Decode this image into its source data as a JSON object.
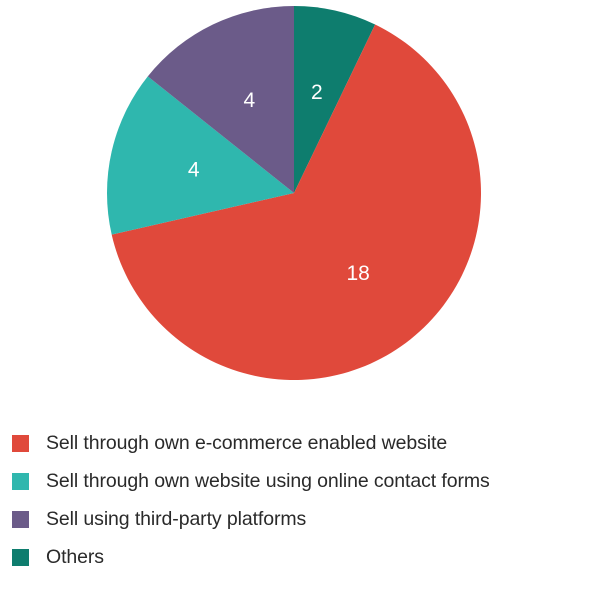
{
  "chart_data": {
    "type": "pie",
    "slices": [
      {
        "label": "Others",
        "value": 2,
        "value_label": "2",
        "color": "#0e7d6e"
      },
      {
        "label": "Sell through own e-commerce enabled website",
        "value": 18,
        "value_label": "18",
        "color": "#e0493b"
      },
      {
        "label": "Sell through own website using online contact forms",
        "value": 4,
        "value_label": "4",
        "color": "#2fb7ae"
      },
      {
        "label": "Sell using third-party platforms",
        "value": 4,
        "value_label": "4",
        "color": "#6b5b89"
      }
    ],
    "start": "12 o'clock",
    "direction": "clockwise",
    "legend_position": "bottom-left"
  },
  "legend": [
    {
      "label": "Sell through own e-commerce enabled website",
      "color": "#e0493b"
    },
    {
      "label": "Sell through own website using online contact forms",
      "color": "#2fb7ae"
    },
    {
      "label": "Sell using third-party platforms",
      "color": "#6b5b89"
    },
    {
      "label": "Others",
      "color": "#0e7d6e"
    }
  ]
}
